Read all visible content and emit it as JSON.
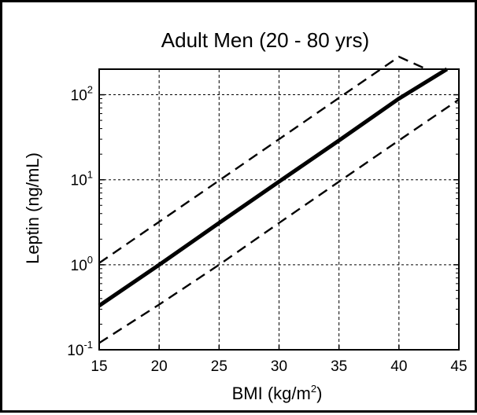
{
  "chart_data": {
    "type": "line",
    "title": "Adult Men (20 - 80 yrs)",
    "xlabel_base": "BMI (kg/m",
    "xlabel_exp": "2",
    "xlabel_close": ")",
    "ylabel": "Leptin (ng/mL)",
    "xlim": [
      15,
      45
    ],
    "ylim": [
      0.1,
      200
    ],
    "yscale": "log",
    "grid": true,
    "x_ticks": [
      "15",
      "20",
      "25",
      "30",
      "35",
      "40",
      "45"
    ],
    "y_ticks": [
      {
        "value": 0.1,
        "base": "10",
        "exp": "-1"
      },
      {
        "value": 1,
        "base": "10",
        "exp": "0"
      },
      {
        "value": 10,
        "base": "10",
        "exp": "1"
      },
      {
        "value": 100,
        "base": "10",
        "exp": "2"
      }
    ],
    "series": [
      {
        "style": "solid",
        "x": [
          15,
          20,
          25,
          30,
          35,
          40,
          44
        ],
        "y": [
          0.33,
          1.0,
          3.1,
          9.5,
          29,
          90,
          200
        ]
      },
      {
        "style": "dashed",
        "x": [
          15,
          20,
          25,
          30,
          35,
          40,
          42.3
        ],
        "y": [
          1.05,
          3.2,
          9.8,
          30,
          92,
          280,
          200
        ]
      },
      {
        "style": "dashed",
        "x": [
          15,
          20,
          25,
          30,
          35,
          40,
          45
        ],
        "y": [
          0.12,
          0.34,
          1.0,
          3.1,
          9.5,
          29,
          88
        ]
      }
    ]
  }
}
